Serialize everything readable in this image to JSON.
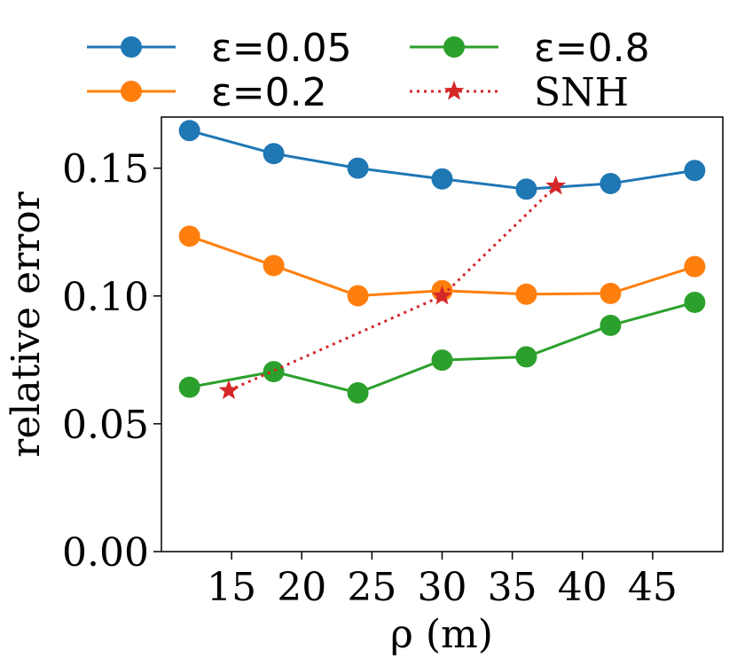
{
  "chart_data": {
    "type": "line",
    "xlabel": "ρ (m)",
    "ylabel": "relative error",
    "xlim": [
      10,
      50
    ],
    "ylim": [
      0,
      0.17
    ],
    "xticks": [
      15,
      20,
      25,
      30,
      35,
      40,
      45
    ],
    "xtick_labels": [
      "15",
      "20",
      "25",
      "30",
      "35",
      "40",
      "45"
    ],
    "yticks": [
      0,
      0.05,
      0.1,
      0.15
    ],
    "ytick_labels": [
      "0.00",
      "0.05",
      "0.10",
      "0.15"
    ],
    "legend_position": "top",
    "series": [
      {
        "name": "ε=0.05",
        "color": "#1f77b4",
        "marker": "circle",
        "linestyle": "solid",
        "x": [
          12,
          18,
          24,
          30,
          36,
          42,
          48
        ],
        "y": [
          0.1647,
          0.1557,
          0.15,
          0.1458,
          0.1418,
          0.144,
          0.1491
        ]
      },
      {
        "name": "ε=0.2",
        "color": "#ff7f0e",
        "marker": "circle",
        "linestyle": "solid",
        "x": [
          12,
          18,
          24,
          30,
          36,
          42,
          48
        ],
        "y": [
          0.1234,
          0.1119,
          0.1001,
          0.1021,
          0.1007,
          0.101,
          0.1115
        ]
      },
      {
        "name": "ε=0.8",
        "color": "#2ca02c",
        "marker": "circle",
        "linestyle": "solid",
        "x": [
          12,
          18,
          24,
          30,
          36,
          42,
          48
        ],
        "y": [
          0.0643,
          0.0704,
          0.0621,
          0.0749,
          0.0762,
          0.0885,
          0.0975
        ]
      },
      {
        "name": "SNH",
        "color": "#d62728",
        "marker": "star",
        "linestyle": "dotted",
        "x": [
          14.8,
          30,
          38.1
        ],
        "y": [
          0.063,
          0.1,
          0.143
        ]
      }
    ]
  }
}
